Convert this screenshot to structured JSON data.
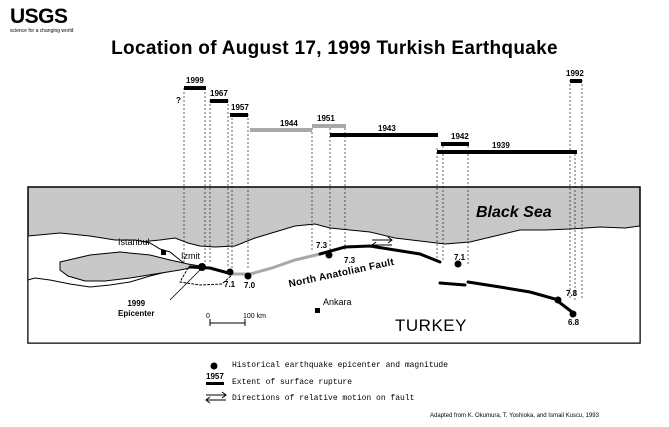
{
  "logo": {
    "word": "USGS",
    "tagline": "science for a changing world"
  },
  "title": "Location of August 17, 1999 Turkish Earthquake",
  "map": {
    "sea_label": "Black Sea",
    "country_label": "TURKEY",
    "fault_label": "North Anatolian Fault",
    "cities": {
      "istanbul": "Istanbul",
      "izmit": "Izmit",
      "ankara": "Ankara"
    },
    "epicenter_label": [
      "1999",
      "Epicenter"
    ],
    "scale": {
      "start": "0",
      "end": "100 km"
    },
    "question_mark": "?"
  },
  "ruptures": [
    {
      "year": "1999"
    },
    {
      "year": "1967"
    },
    {
      "year": "1957"
    },
    {
      "year": "1944"
    },
    {
      "year": "1951"
    },
    {
      "year": "1943"
    },
    {
      "year": "1942"
    },
    {
      "year": "1939"
    },
    {
      "year": "1992"
    }
  ],
  "magnitudes": [
    "7.1",
    "7.0",
    "7.3",
    "7.3",
    "7.1",
    "7.8",
    "6.8"
  ],
  "legend": {
    "epicenter_text": "Historical earthquake epicenter and magnitude",
    "rupture_swatch": "1957",
    "rupture_text": "Extent of surface rupture",
    "motion_text": "Directions of relative motion on fault"
  },
  "credit": "Adapted from K. Okumura, T. Yoshioka, and Ismail Kuscu, 1993",
  "colors": {
    "sea": "#c8c8c8",
    "land": "#ffffff",
    "ink": "#000000",
    "gray_rupture": "#a8a8a8"
  }
}
